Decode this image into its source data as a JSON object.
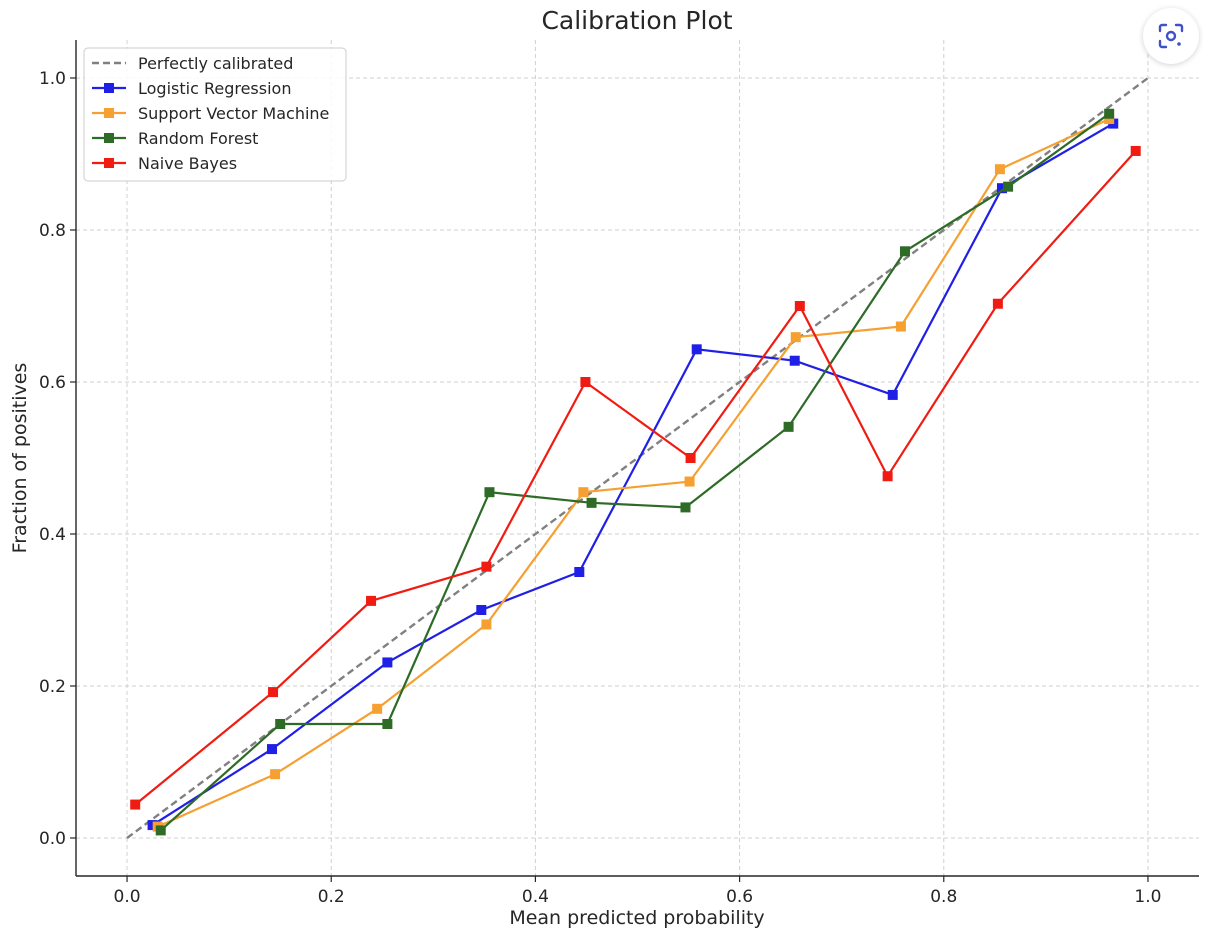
{
  "chart_data": {
    "type": "line",
    "title": "Calibration Plot",
    "xlabel": "Mean predicted probability",
    "ylabel": "Fraction of positives",
    "xlim": [
      -0.05,
      1.05
    ],
    "ylim": [
      -0.05,
      1.05
    ],
    "xticks": [
      "0.0",
      "0.2",
      "0.4",
      "0.6",
      "0.8",
      "1.0"
    ],
    "yticks": [
      "0.0",
      "0.2",
      "0.4",
      "0.6",
      "0.8",
      "1.0"
    ],
    "grid": true,
    "legend_position": "top-left",
    "reference": {
      "name": "Perfectly calibrated",
      "x": [
        0,
        1
      ],
      "y": [
        0,
        1
      ],
      "color": "#808080",
      "style": "dashed"
    },
    "series": [
      {
        "name": "Logistic Regression",
        "color": "#1f1fe6",
        "x": [
          0.025,
          0.142,
          0.255,
          0.347,
          0.443,
          0.558,
          0.654,
          0.75,
          0.857,
          0.966
        ],
        "y": [
          0.017,
          0.117,
          0.231,
          0.3,
          0.35,
          0.643,
          0.628,
          0.583,
          0.855,
          0.94
        ]
      },
      {
        "name": "Support Vector Machine",
        "color": "#f5a031",
        "x": [
          0.03,
          0.145,
          0.245,
          0.352,
          0.447,
          0.551,
          0.655,
          0.758,
          0.855,
          0.962
        ],
        "y": [
          0.015,
          0.084,
          0.17,
          0.281,
          0.455,
          0.469,
          0.659,
          0.673,
          0.88,
          0.946
        ]
      },
      {
        "name": "Random Forest",
        "color": "#2e6b27",
        "x": [
          0.033,
          0.15,
          0.255,
          0.355,
          0.455,
          0.547,
          0.648,
          0.762,
          0.863,
          0.962
        ],
        "y": [
          0.01,
          0.15,
          0.15,
          0.455,
          0.441,
          0.435,
          0.541,
          0.772,
          0.857,
          0.953
        ]
      },
      {
        "name": "Naive Bayes",
        "color": "#f01c12",
        "x": [
          0.008,
          0.143,
          0.239,
          0.352,
          0.449,
          0.552,
          0.659,
          0.745,
          0.853,
          0.988
        ],
        "y": [
          0.044,
          0.192,
          0.312,
          0.357,
          0.6,
          0.5,
          0.7,
          0.476,
          0.703,
          0.904
        ]
      }
    ]
  },
  "ui": {
    "lens_icon": "image-search-icon"
  }
}
